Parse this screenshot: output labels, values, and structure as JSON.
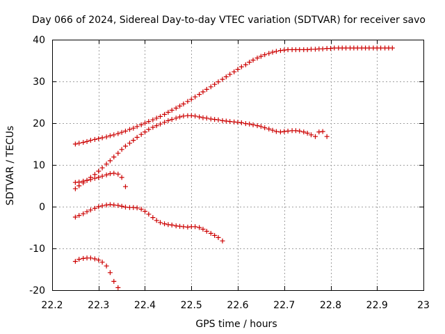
{
  "chart_data": {
    "type": "scatter",
    "title": "Day 066 of 2024, Sidereal Day-to-day VTEC variation (SDTVAR) for receiver savo",
    "xlabel": "GPS time / hours",
    "ylabel": "SDTVAR / TECUs",
    "xlim": [
      22.2,
      23.0
    ],
    "ylim": [
      -20,
      40
    ],
    "xticks": [
      "22.2",
      "22.3",
      "22.4",
      "22.5",
      "22.6",
      "22.7",
      "22.8",
      "22.9",
      "23"
    ],
    "xtick_values": [
      22.2,
      22.3,
      22.4,
      22.5,
      22.6,
      22.7,
      22.8,
      22.9,
      23.0
    ],
    "yticks": [
      "-20",
      "-10",
      "0",
      "10",
      "20",
      "30",
      "40"
    ],
    "ytick_values": [
      -20,
      -10,
      0,
      10,
      20,
      30,
      40
    ],
    "grid": true,
    "marker": "+",
    "color": "#cc0000",
    "series": [
      {
        "name": "trace-1",
        "x": [
          22.25,
          22.258,
          22.267,
          22.275,
          22.283,
          22.292,
          22.3,
          22.308,
          22.317,
          22.325,
          22.333,
          22.342,
          22.35,
          22.358,
          22.367,
          22.375,
          22.383,
          22.392,
          22.4,
          22.408,
          22.417,
          22.425,
          22.433,
          22.442,
          22.45,
          22.458,
          22.467,
          22.475,
          22.483,
          22.492,
          22.5,
          22.508,
          22.517,
          22.525,
          22.533,
          22.542,
          22.55,
          22.558,
          22.567,
          22.575,
          22.583,
          22.592,
          22.6,
          22.608,
          22.617,
          22.625,
          22.633,
          22.642,
          22.65,
          22.658,
          22.667,
          22.675,
          22.683,
          22.692,
          22.7,
          22.708,
          22.717,
          22.725,
          22.733,
          22.742,
          22.75,
          22.758,
          22.767,
          22.775,
          22.783,
          22.792,
          22.8,
          22.808,
          22.817,
          22.825,
          22.833,
          22.842,
          22.85,
          22.858,
          22.867,
          22.875,
          22.883,
          22.892,
          22.9,
          22.908,
          22.917,
          22.925,
          22.933
        ],
        "y": [
          15.0,
          15.2,
          15.4,
          15.6,
          15.9,
          16.1,
          16.3,
          16.5,
          16.7,
          17.0,
          17.2,
          17.5,
          17.8,
          18.1,
          18.5,
          18.8,
          19.2,
          19.6,
          20.0,
          20.4,
          20.8,
          21.2,
          21.6,
          22.1,
          22.6,
          23.1,
          23.6,
          24.1,
          24.6,
          25.2,
          25.7,
          26.3,
          26.9,
          27.5,
          28.1,
          28.7,
          29.3,
          29.9,
          30.5,
          31.1,
          31.7,
          32.3,
          32.9,
          33.5,
          34.0,
          34.6,
          35.1,
          35.6,
          36.0,
          36.4,
          36.7,
          37.0,
          37.2,
          37.4,
          37.5,
          37.6,
          37.6,
          37.6,
          37.6,
          37.6,
          37.6,
          37.7,
          37.7,
          37.8,
          37.8,
          37.9,
          37.9,
          38.0,
          38.0,
          38.0,
          38.0,
          38.0,
          38.0,
          38.0,
          38.0,
          38.0,
          38.0,
          38.0,
          38.0,
          38.0,
          38.0,
          38.0,
          38.0
        ]
      },
      {
        "name": "trace-2",
        "x": [
          22.25,
          22.258,
          22.267,
          22.275,
          22.283,
          22.292,
          22.3,
          22.308,
          22.317,
          22.325,
          22.333,
          22.342,
          22.35,
          22.358,
          22.367,
          22.375,
          22.383,
          22.392,
          22.4,
          22.408,
          22.417,
          22.425,
          22.433,
          22.442,
          22.45,
          22.458,
          22.467,
          22.475,
          22.483,
          22.492,
          22.5,
          22.508,
          22.517,
          22.525,
          22.533,
          22.542,
          22.55,
          22.558,
          22.567,
          22.575,
          22.583,
          22.592,
          22.6,
          22.608,
          22.617,
          22.625,
          22.633,
          22.642,
          22.65,
          22.658,
          22.667,
          22.675,
          22.683,
          22.692,
          22.7,
          22.708,
          22.717,
          22.725,
          22.733,
          22.742,
          22.75,
          22.758,
          22.767,
          22.775,
          22.783,
          22.792
        ],
        "y": [
          4.3,
          5.0,
          5.7,
          6.3,
          7.0,
          7.7,
          8.5,
          9.3,
          10.2,
          11.0,
          11.9,
          12.8,
          13.7,
          14.5,
          15.2,
          15.9,
          16.6,
          17.3,
          17.9,
          18.5,
          19.0,
          19.4,
          19.8,
          20.2,
          20.6,
          20.9,
          21.2,
          21.5,
          21.7,
          21.8,
          21.8,
          21.7,
          21.5,
          21.3,
          21.2,
          21.0,
          20.9,
          20.8,
          20.6,
          20.5,
          20.4,
          20.3,
          20.2,
          20.1,
          19.9,
          19.8,
          19.6,
          19.4,
          19.2,
          18.9,
          18.6,
          18.3,
          18.0,
          17.9,
          18.0,
          18.1,
          18.2,
          18.2,
          18.1,
          17.9,
          17.6,
          17.2,
          16.8,
          17.9,
          18.0,
          16.8
        ]
      },
      {
        "name": "trace-3",
        "x": [
          22.25,
          22.258,
          22.267,
          22.275,
          22.283,
          22.292,
          22.3,
          22.308,
          22.317,
          22.325,
          22.333,
          22.342,
          22.35,
          22.358
        ],
        "y": [
          5.8,
          5.9,
          6.1,
          6.3,
          6.5,
          6.8,
          7.0,
          7.3,
          7.6,
          7.9,
          8.0,
          7.8,
          7.0,
          4.8
        ]
      },
      {
        "name": "trace-4",
        "x": [
          22.25,
          22.258,
          22.267,
          22.275,
          22.283,
          22.292,
          22.3,
          22.308,
          22.317,
          22.325,
          22.333,
          22.342,
          22.35,
          22.358,
          22.367,
          22.375,
          22.383,
          22.392,
          22.4,
          22.408,
          22.417,
          22.425,
          22.433,
          22.442,
          22.45,
          22.458,
          22.467,
          22.475,
          22.483,
          22.492,
          22.5,
          22.508,
          22.517,
          22.525,
          22.533,
          22.542,
          22.55,
          22.558,
          22.567
        ],
        "y": [
          -2.5,
          -2.1,
          -1.7,
          -1.2,
          -0.8,
          -0.4,
          0.0,
          0.2,
          0.4,
          0.5,
          0.4,
          0.3,
          0.1,
          -0.1,
          -0.2,
          -0.2,
          -0.3,
          -0.6,
          -1.1,
          -1.8,
          -2.6,
          -3.3,
          -3.8,
          -4.1,
          -4.3,
          -4.4,
          -4.6,
          -4.7,
          -4.8,
          -4.9,
          -4.8,
          -4.8,
          -5.0,
          -5.4,
          -5.9,
          -6.4,
          -6.9,
          -7.4,
          -8.2
        ]
      },
      {
        "name": "trace-5",
        "x": [
          22.25,
          22.258,
          22.267,
          22.275,
          22.283,
          22.292,
          22.3,
          22.308,
          22.317,
          22.325,
          22.333,
          22.342
        ],
        "y": [
          -13.1,
          -12.6,
          -12.4,
          -12.3,
          -12.3,
          -12.5,
          -12.8,
          -13.3,
          -14.2,
          -15.8,
          -17.9,
          -19.4
        ]
      }
    ]
  }
}
